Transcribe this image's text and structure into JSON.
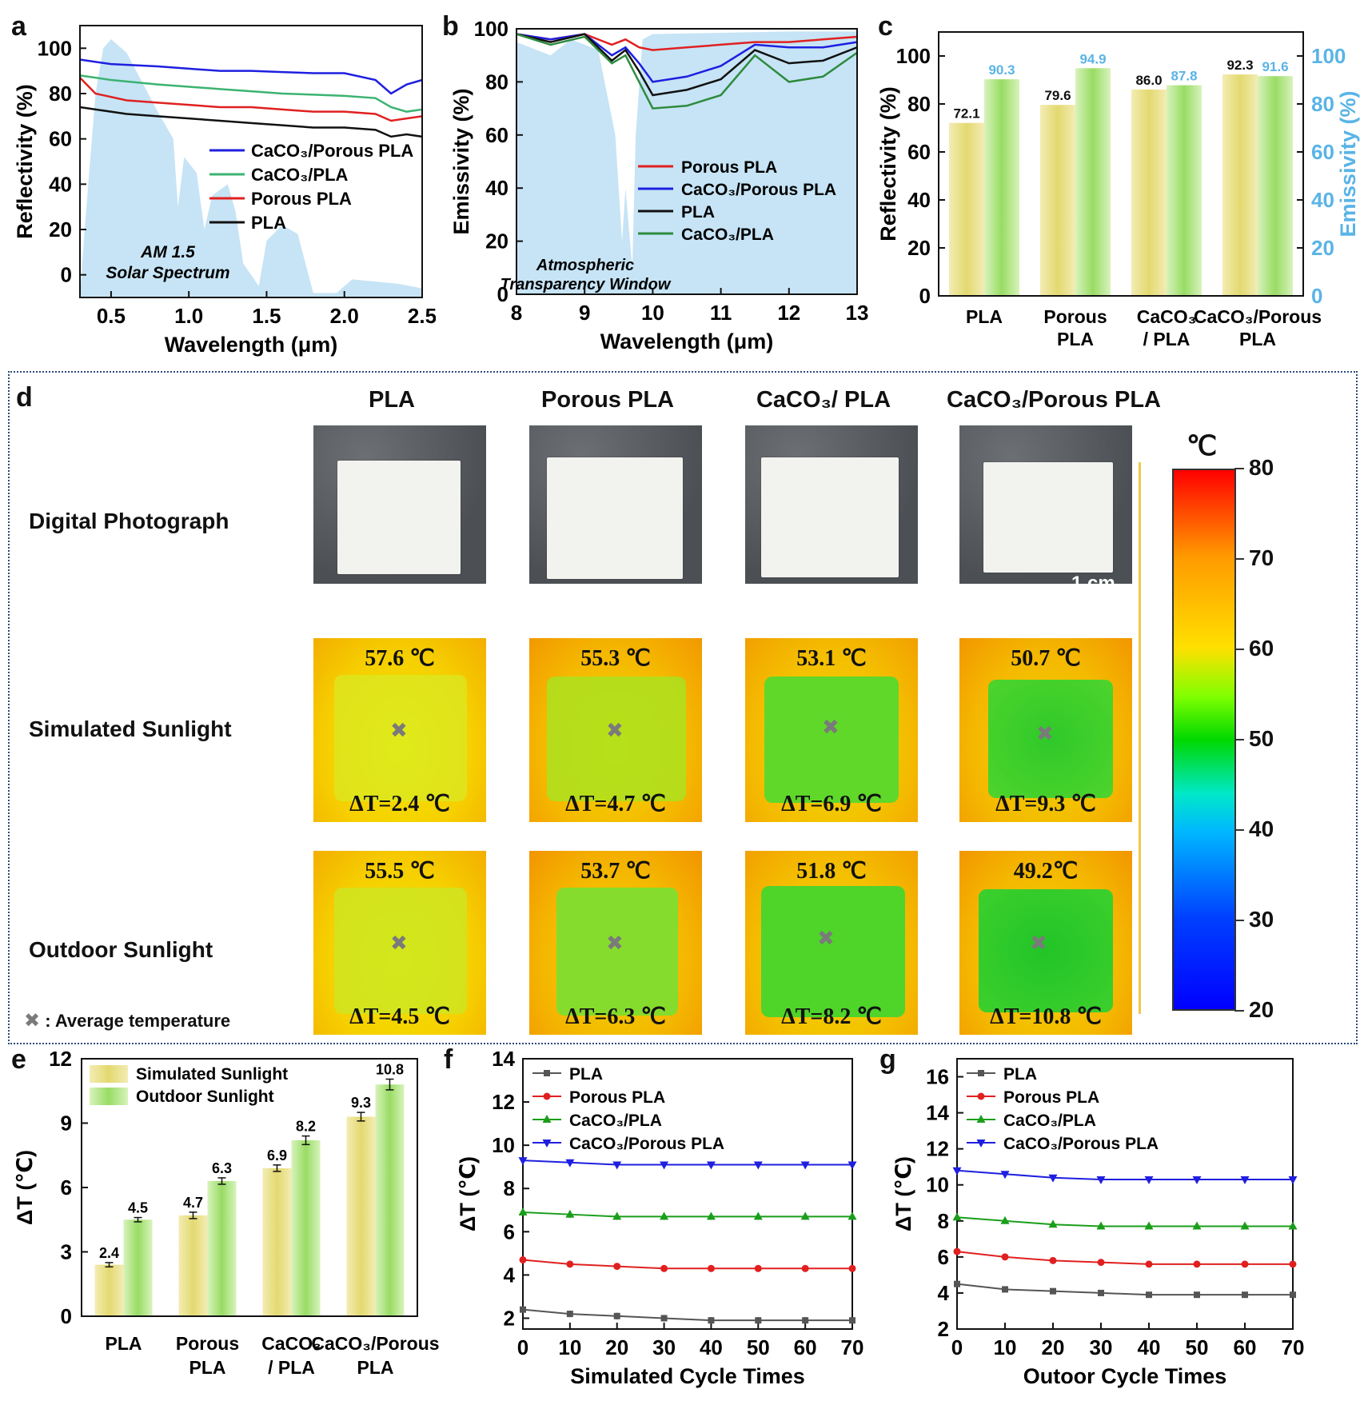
{
  "chart_data": [
    {
      "panel": "a",
      "type": "line",
      "xlabel": "Wavelength (μm)",
      "ylabel": "Reflectivity (%)",
      "xlim": [
        0.3,
        2.5
      ],
      "ylim": [
        -10,
        110
      ],
      "xticks": [
        0.5,
        1.0,
        1.5,
        2.0,
        2.5
      ],
      "xtick_labels": [
        "0.5",
        "1.0",
        "1.5",
        "2.0",
        "2.5"
      ],
      "yticks": [
        0,
        20,
        40,
        60,
        80,
        100
      ],
      "ytick_labels": [
        "0",
        "20",
        "40",
        "60",
        "80",
        "100"
      ],
      "annotation": [
        "AM 1.5",
        "Solar Spectrum"
      ],
      "legend_position": "center-right",
      "series": [
        {
          "name": "CaCO₃/Porous PLA",
          "color": "#1f1fe0",
          "x": [
            0.3,
            0.5,
            0.8,
            1.0,
            1.2,
            1.4,
            1.6,
            1.8,
            2.0,
            2.2,
            2.3,
            2.4,
            2.5
          ],
          "y": [
            95,
            93,
            92,
            91,
            90,
            90,
            89.5,
            89,
            89,
            86,
            80,
            84,
            86
          ]
        },
        {
          "name": "CaCO₃/PLA",
          "color": "#3cb371",
          "x": [
            0.3,
            0.5,
            0.8,
            1.0,
            1.2,
            1.4,
            1.6,
            1.8,
            2.0,
            2.2,
            2.3,
            2.4,
            2.5
          ],
          "y": [
            88,
            86,
            84,
            83,
            82,
            81,
            80,
            79.5,
            79,
            78,
            74,
            72,
            73
          ]
        },
        {
          "name": "Porous PLA",
          "color": "#e02020",
          "x": [
            0.3,
            0.4,
            0.6,
            0.8,
            1.0,
            1.2,
            1.4,
            1.6,
            1.8,
            2.0,
            2.2,
            2.3,
            2.4,
            2.5
          ],
          "y": [
            87,
            80,
            77,
            76,
            75,
            74,
            74,
            73,
            72,
            72,
            71,
            68,
            69,
            70
          ]
        },
        {
          "name": "PLA",
          "color": "#111111",
          "x": [
            0.3,
            0.4,
            0.6,
            0.8,
            1.0,
            1.2,
            1.4,
            1.6,
            1.8,
            2.0,
            2.2,
            2.3,
            2.4,
            2.5
          ],
          "y": [
            74,
            73,
            71,
            70,
            69,
            68,
            67,
            66,
            65,
            65,
            64,
            61,
            62,
            61
          ]
        }
      ]
    },
    {
      "panel": "b",
      "type": "line",
      "xlabel": "Wavelength (μm)",
      "ylabel": "Emissivity (%)",
      "xlim": [
        8,
        13
      ],
      "ylim": [
        0,
        100
      ],
      "xticks": [
        8,
        9,
        10,
        11,
        12,
        13
      ],
      "xtick_labels": [
        "8",
        "9",
        "10",
        "11",
        "12",
        "13"
      ],
      "yticks": [
        0,
        20,
        40,
        60,
        80,
        100
      ],
      "ytick_labels": [
        "0",
        "20",
        "40",
        "60",
        "80",
        "100"
      ],
      "annotation": [
        "Atmospheric",
        "Transparency Window"
      ],
      "legend_position": "center-right",
      "series": [
        {
          "name": "Porous PLA",
          "color": "#e02020",
          "x": [
            8,
            8.5,
            9,
            9.4,
            9.6,
            9.8,
            10,
            10.5,
            11,
            11.5,
            12,
            12.5,
            13
          ],
          "y": [
            98,
            96,
            98,
            94,
            96,
            93,
            92,
            93,
            94,
            95,
            95,
            96,
            97
          ]
        },
        {
          "name": "CaCO₃/Porous PLA",
          "color": "#1f1fe0",
          "x": [
            8,
            8.5,
            9,
            9.4,
            9.6,
            9.8,
            10,
            10.5,
            11,
            11.5,
            12,
            12.5,
            13
          ],
          "y": [
            98,
            96,
            98,
            90,
            93,
            87,
            80,
            82,
            86,
            94,
            93,
            93,
            95
          ]
        },
        {
          "name": "PLA",
          "color": "#111111",
          "x": [
            8,
            8.5,
            9,
            9.4,
            9.6,
            9.8,
            10,
            10.5,
            11,
            11.5,
            12,
            12.5,
            13
          ],
          "y": [
            98,
            95,
            98,
            88,
            92,
            84,
            75,
            77,
            81,
            92,
            87,
            88,
            93
          ]
        },
        {
          "name": "CaCO₃/PLA",
          "color": "#2e8b3e",
          "x": [
            8,
            8.5,
            9,
            9.4,
            9.6,
            9.8,
            10,
            10.5,
            11,
            11.5,
            12,
            12.5,
            13
          ],
          "y": [
            98,
            94,
            97,
            87,
            90,
            80,
            70,
            71,
            75,
            90,
            80,
            82,
            91
          ]
        }
      ]
    },
    {
      "panel": "c",
      "type": "bar",
      "categories": [
        [
          "PLA"
        ],
        [
          "Porous",
          "PLA"
        ],
        [
          "CaCO₃",
          "/ PLA"
        ],
        [
          "CaCO₃/Porous",
          "PLA"
        ]
      ],
      "ylabel": "Reflectivity (%)",
      "y2label": "Emissivity (%)",
      "ylim": [
        0,
        110
      ],
      "y2lim": [
        0,
        110
      ],
      "yticks": [
        0,
        20,
        40,
        60,
        80,
        100
      ],
      "ytick_labels": [
        "0",
        "20",
        "40",
        "60",
        "80",
        "100"
      ],
      "series": [
        {
          "name": "Reflectivity",
          "values": [
            72.1,
            79.6,
            86.0,
            92.3
          ],
          "labels": [
            "72.1",
            "79.6",
            "86.0",
            "92.3"
          ],
          "color": "#e8e08a"
        },
        {
          "name": "Emissivity",
          "values": [
            90.3,
            94.9,
            87.8,
            91.6
          ],
          "labels": [
            "90.3",
            "94.9",
            "87.8",
            "91.6"
          ],
          "color": "#a7e07a"
        }
      ],
      "accent_color": "#5ab4e6"
    },
    {
      "panel": "e",
      "type": "bar",
      "categories": [
        [
          "PLA"
        ],
        [
          "Porous",
          "PLA"
        ],
        [
          "CaCO₃",
          "/ PLA"
        ],
        [
          "CaCO₃/Porous",
          "PLA"
        ]
      ],
      "ylabel": "ΔT (℃)",
      "ylim": [
        0,
        12
      ],
      "yticks": [
        0,
        3,
        6,
        9,
        12
      ],
      "ytick_labels": [
        "0",
        "3",
        "6",
        "9",
        "12"
      ],
      "legend_position": "top-left",
      "series": [
        {
          "name": "Simulated Sunlight",
          "values": [
            2.4,
            4.7,
            6.9,
            9.3
          ],
          "labels": [
            "2.4",
            "4.7",
            "6.9",
            "9.3"
          ],
          "errors": [
            0.1,
            0.15,
            0.15,
            0.2
          ],
          "color": "#e8e08a"
        },
        {
          "name": "Outdoor Sunlight",
          "values": [
            4.5,
            6.3,
            8.2,
            10.8
          ],
          "labels": [
            "4.5",
            "6.3",
            "8.2",
            "10.8"
          ],
          "errors": [
            0.1,
            0.15,
            0.2,
            0.25
          ],
          "color": "#a7e07a"
        }
      ]
    },
    {
      "panel": "f",
      "type": "line",
      "xlabel": "Simulated Cycle Times",
      "ylabel": "ΔT (℃)",
      "xlim": [
        0,
        70
      ],
      "ylim": [
        1.5,
        14
      ],
      "xticks": [
        0,
        10,
        20,
        30,
        40,
        50,
        60,
        70
      ],
      "xtick_labels": [
        "0",
        "10",
        "20",
        "30",
        "40",
        "50",
        "60",
        "70"
      ],
      "yticks": [
        2,
        4,
        6,
        8,
        10,
        12,
        14
      ],
      "ytick_labels": [
        "2",
        "4",
        "6",
        "8",
        "10",
        "12",
        "14"
      ],
      "legend_position": "top-left",
      "x": [
        0,
        10,
        20,
        30,
        40,
        50,
        60,
        70
      ],
      "series": [
        {
          "name": "PLA",
          "color": "#555555",
          "marker": "square",
          "values": [
            2.4,
            2.2,
            2.1,
            2.0,
            1.9,
            1.9,
            1.9,
            1.9
          ]
        },
        {
          "name": "Porous PLA",
          "color": "#e02020",
          "marker": "circle",
          "values": [
            4.7,
            4.5,
            4.4,
            4.3,
            4.3,
            4.3,
            4.3,
            4.3
          ]
        },
        {
          "name": "CaCO₃/PLA",
          "color": "#1a9e1a",
          "marker": "triangle-up",
          "values": [
            6.9,
            6.8,
            6.7,
            6.7,
            6.7,
            6.7,
            6.7,
            6.7
          ]
        },
        {
          "name": "CaCO₃/Porous PLA",
          "color": "#1f1fe0",
          "marker": "triangle-down",
          "values": [
            9.3,
            9.2,
            9.1,
            9.1,
            9.1,
            9.1,
            9.1,
            9.1
          ]
        }
      ]
    },
    {
      "panel": "g",
      "type": "line",
      "xlabel": "Outoor Cycle Times",
      "ylabel": "ΔT (℃)",
      "xlim": [
        0,
        70
      ],
      "ylim": [
        2,
        17
      ],
      "xticks": [
        0,
        10,
        20,
        30,
        40,
        50,
        60,
        70
      ],
      "xtick_labels": [
        "0",
        "10",
        "20",
        "30",
        "40",
        "50",
        "60",
        "70"
      ],
      "yticks": [
        2,
        4,
        6,
        8,
        10,
        12,
        14,
        16
      ],
      "ytick_labels": [
        "2",
        "4",
        "6",
        "8",
        "10",
        "12",
        "14",
        "16"
      ],
      "legend_position": "top-left",
      "x": [
        0,
        10,
        20,
        30,
        40,
        50,
        60,
        70
      ],
      "series": [
        {
          "name": "PLA",
          "color": "#555555",
          "marker": "square",
          "values": [
            4.5,
            4.2,
            4.1,
            4.0,
            3.9,
            3.9,
            3.9,
            3.9
          ]
        },
        {
          "name": "Porous PLA",
          "color": "#e02020",
          "marker": "circle",
          "values": [
            6.3,
            6.0,
            5.8,
            5.7,
            5.6,
            5.6,
            5.6,
            5.6
          ]
        },
        {
          "name": "CaCO₃/PLA",
          "color": "#1a9e1a",
          "marker": "triangle-up",
          "values": [
            8.2,
            8.0,
            7.8,
            7.7,
            7.7,
            7.7,
            7.7,
            7.7
          ]
        },
        {
          "name": "CaCO₃/Porous PLA",
          "color": "#1f1fe0",
          "marker": "triangle-down",
          "values": [
            10.8,
            10.6,
            10.4,
            10.3,
            10.3,
            10.3,
            10.3,
            10.3
          ]
        }
      ]
    }
  ],
  "panel_d": {
    "label": "d",
    "columns": [
      "PLA",
      "Porous PLA",
      "CaCO₃/ PLA",
      "CaCO₃/Porous PLA"
    ],
    "rows": [
      "Digital Photograph",
      "Simulated Sunlight",
      "Outdoor Sunlight"
    ],
    "scale_bar": "1 cm",
    "legend_note": "Average temperature",
    "legend_symbol": "✖",
    "simulated": {
      "temps": [
        "57.6 ℃",
        "55.3 ℃",
        "53.1 ℃",
        "50.7 ℃"
      ],
      "deltas": [
        "ΔT=2.4 ℃",
        "ΔT=4.7 ℃",
        "ΔT=6.9 ℃",
        "ΔT=9.3 ℃"
      ],
      "temp_values": [
        57.6,
        55.3,
        53.1,
        50.7
      ]
    },
    "outdoor": {
      "temps": [
        "55.5 ℃",
        "53.7 ℃",
        "51.8 ℃",
        "49.2℃"
      ],
      "deltas": [
        "ΔT=4.5 ℃",
        "ΔT=6.3 ℃",
        "ΔT=8.2 ℃",
        "ΔT=10.8 ℃"
      ],
      "temp_values": [
        55.5,
        53.7,
        51.8,
        49.2
      ]
    },
    "colorbar": {
      "unit": "℃",
      "min": 20,
      "max": 80,
      "ticks": [
        "80",
        "70",
        "60",
        "50",
        "40",
        "30",
        "20"
      ]
    }
  },
  "panel_labels": [
    "a",
    "b",
    "c",
    "d",
    "e",
    "f",
    "g"
  ]
}
